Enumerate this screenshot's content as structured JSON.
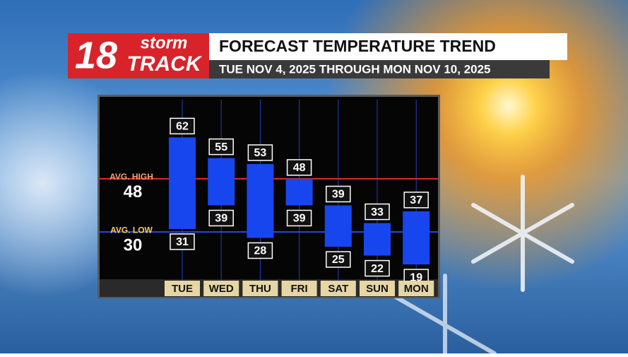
{
  "brand": {
    "number": "18",
    "word1": "storm",
    "word2": "TRACK"
  },
  "chart_data": {
    "type": "floating-bar",
    "title": "FORECAST TEMPERATURE TREND",
    "subtitle": "TUE NOV 4, 2025 THROUGH MON NOV 10, 2025",
    "categories": [
      "TUE",
      "WED",
      "THU",
      "FRI",
      "SAT",
      "SUN",
      "MON"
    ],
    "highs": [
      62,
      55,
      53,
      48,
      39,
      33,
      37
    ],
    "lows": [
      31,
      39,
      28,
      39,
      25,
      22,
      19
    ],
    "color": "#1846ee",
    "ylim": [
      14,
      75
    ],
    "avg_high": {
      "label": "AVG. HIGH",
      "value": 48,
      "color": "#e8262a"
    },
    "avg_low": {
      "label": "AVG. LOW",
      "value": 30,
      "color": "#2447e8"
    }
  }
}
